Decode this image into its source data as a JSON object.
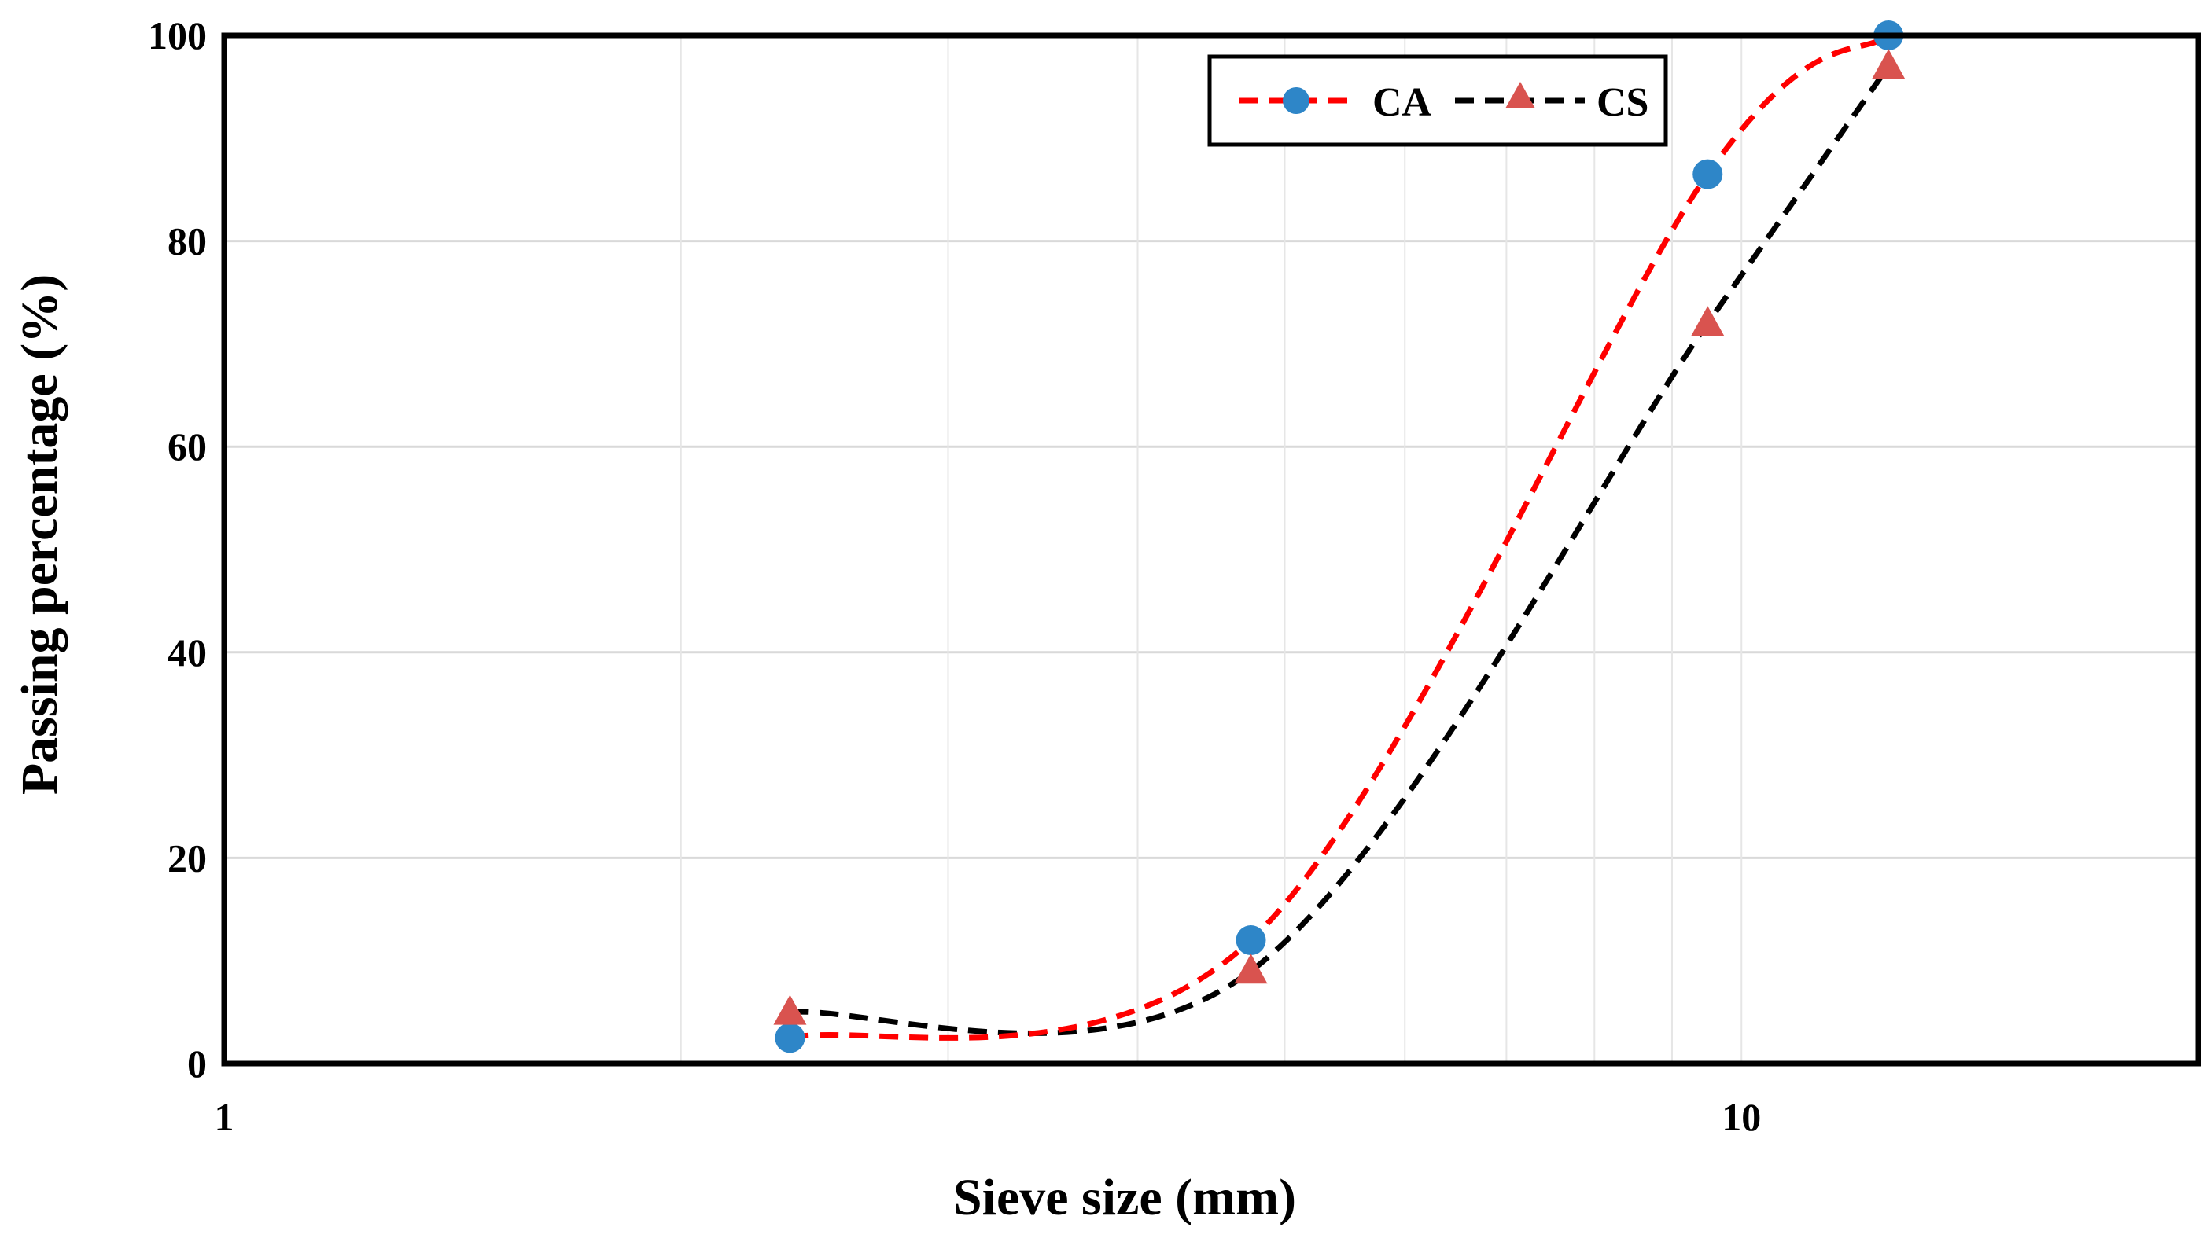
{
  "chart_data": {
    "type": "line",
    "x_scale": "log",
    "xlabel": "Sieve size (mm)",
    "ylabel": "Passing percentage (%)",
    "xlim": [
      1,
      20
    ],
    "ylim": [
      0,
      100
    ],
    "x_ticks": [
      {
        "value": 1,
        "label": "1"
      },
      {
        "value": 10,
        "label": "10"
      }
    ],
    "y_ticks": [
      0,
      20,
      40,
      60,
      80,
      100
    ],
    "grid": true,
    "legend_position": "top-right",
    "series": [
      {
        "name": "CA",
        "marker": "circle",
        "line_color": "#ff0000",
        "marker_color": "#2e86c8",
        "line_style": "dashed",
        "x": [
          2.36,
          4.75,
          9.5,
          12.5
        ],
        "y": [
          2.5,
          12,
          86.5,
          100
        ]
      },
      {
        "name": "CS",
        "marker": "triangle",
        "line_color": "#000000",
        "marker_color": "#d9534f",
        "line_style": "dashed",
        "x": [
          2.36,
          4.75,
          9.5,
          12.5
        ],
        "y": [
          5,
          9,
          72,
          97
        ]
      }
    ]
  }
}
